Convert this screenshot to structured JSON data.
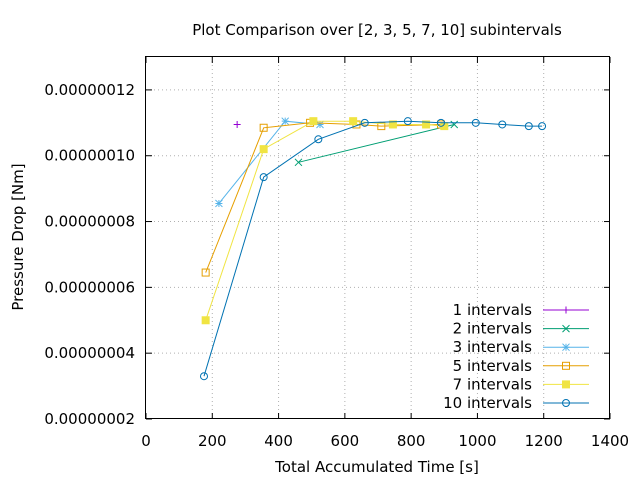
{
  "chart_data": {
    "type": "line",
    "title": "Plot Comparison over [2, 3, 5, 7, 10] subintervals",
    "xlabel": "Total Accumulated Time [s]",
    "ylabel": "Pressure Drop [Nm]",
    "xlim": [
      0,
      1400
    ],
    "ylim": [
      2e-08,
      1.3e-07
    ],
    "xticks": [
      0,
      200,
      400,
      600,
      800,
      1000,
      1200,
      1400
    ],
    "xtick_labels": [
      "0",
      "200",
      "400",
      "600",
      "800",
      "1000",
      "1200",
      "1400"
    ],
    "yticks": [
      2e-08,
      4e-08,
      6e-08,
      8e-08,
      1e-07,
      1.2e-07
    ],
    "ytick_labels": [
      "0.00000002",
      "0.00000004",
      "0.00000006",
      "0.00000008",
      "0.00000010",
      "0.00000012"
    ],
    "grid": true,
    "legend_position": "bottom-right",
    "series": [
      {
        "name": "1 intervals",
        "color": "#9400d3",
        "marker": "plus",
        "points": [
          [
            275,
            1.095e-07
          ]
        ]
      },
      {
        "name": "2 intervals",
        "color": "#009e73",
        "marker": "cross",
        "points": [
          [
            460,
            9.8e-08
          ],
          [
            930,
            1.095e-07
          ]
        ]
      },
      {
        "name": "3 intervals",
        "color": "#56b4e9",
        "marker": "star",
        "points": [
          [
            220,
            8.55e-08
          ],
          [
            420,
            1.105e-07
          ],
          [
            525,
            1.095e-07
          ]
        ]
      },
      {
        "name": "5 intervals",
        "color": "#e69f00",
        "marker": "open-square",
        "points": [
          [
            180,
            6.45e-08
          ],
          [
            355,
            1.085e-07
          ],
          [
            495,
            1.1e-07
          ],
          [
            635,
            1.095e-07
          ],
          [
            710,
            1.09e-07
          ],
          [
            890,
            1.095e-07
          ]
        ]
      },
      {
        "name": "7 intervals",
        "color": "#f0e442",
        "marker": "filled-square",
        "points": [
          [
            180,
            5e-08
          ],
          [
            355,
            1.02e-07
          ],
          [
            505,
            1.105e-07
          ],
          [
            625,
            1.105e-07
          ],
          [
            745,
            1.095e-07
          ],
          [
            845,
            1.095e-07
          ],
          [
            900,
            1.09e-07
          ]
        ]
      },
      {
        "name": "10 intervals",
        "color": "#0072b2",
        "marker": "open-circle",
        "points": [
          [
            175,
            3.3e-08
          ],
          [
            355,
            9.35e-08
          ],
          [
            520,
            1.05e-07
          ],
          [
            660,
            1.1e-07
          ],
          [
            790,
            1.105e-07
          ],
          [
            890,
            1.1e-07
          ],
          [
            995,
            1.1e-07
          ],
          [
            1075,
            1.095e-07
          ],
          [
            1155,
            1.09e-07
          ],
          [
            1195,
            1.09e-07
          ]
        ]
      }
    ]
  }
}
